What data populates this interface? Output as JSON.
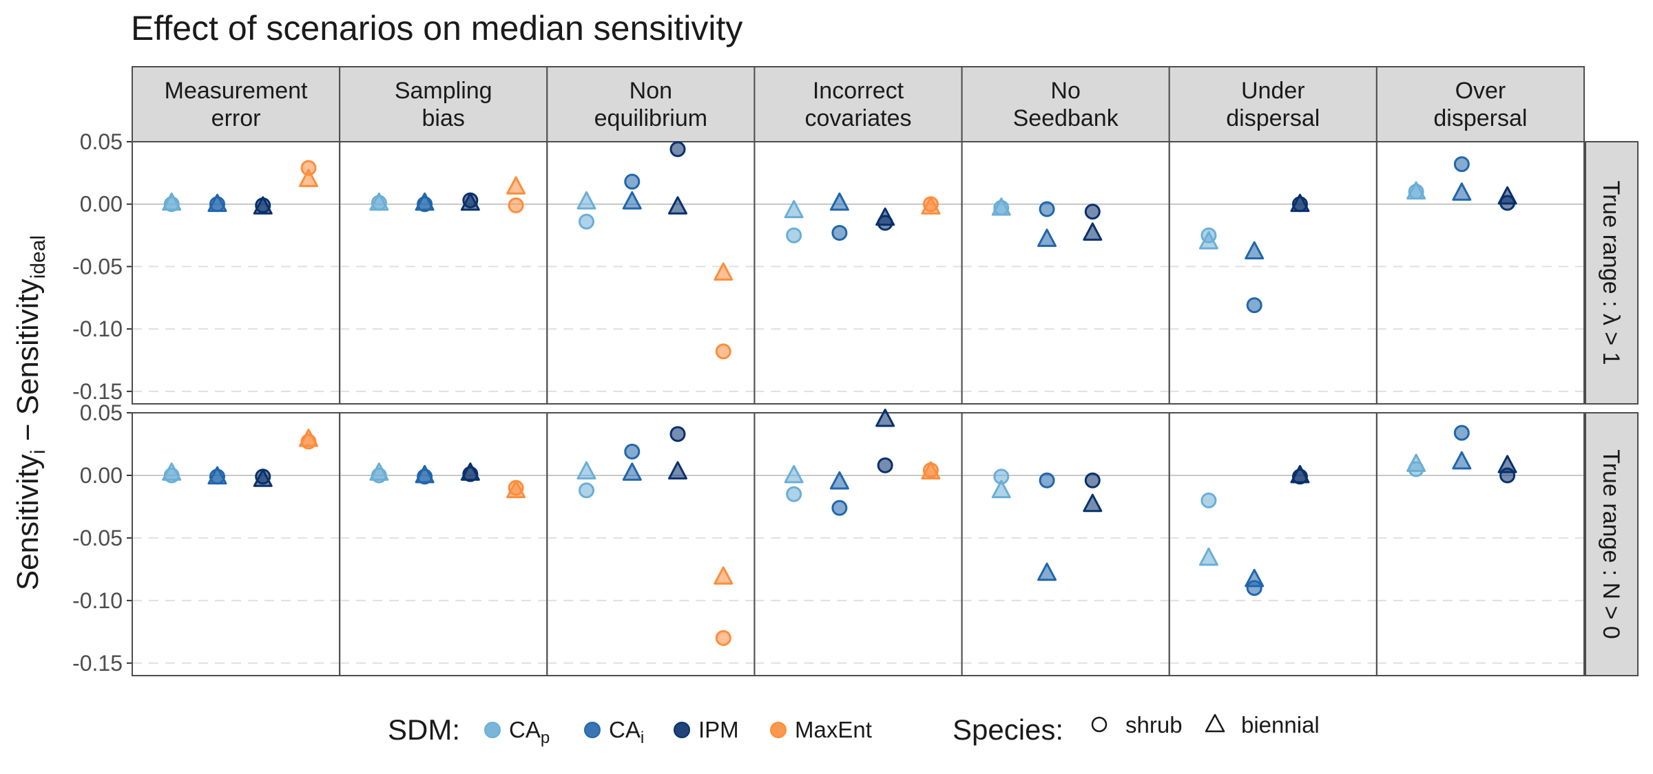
{
  "chart_data": {
    "type": "scatter",
    "title": "Effect of scenarios on median sensitivity",
    "ylabel": {
      "main": "Sensitivity",
      "sub1": "i",
      "mid": " − Sensitivity",
      "sub2": "ideal"
    },
    "ylim": [
      -0.16,
      0.05
    ],
    "y_ticks": [
      0.05,
      0.0,
      -0.05,
      -0.1,
      -0.15
    ],
    "y_tick_labels": [
      "0.05",
      "0.00",
      "-0.05",
      "-0.10",
      "-0.15"
    ],
    "grid": true,
    "facet_columns": [
      [
        "Measurement",
        "error"
      ],
      [
        "Sampling",
        "bias"
      ],
      [
        "Non",
        "equilibrium"
      ],
      [
        "Incorrect",
        "covariates"
      ],
      [
        "No",
        "Seedbank"
      ],
      [
        "Under",
        "dispersal"
      ],
      [
        "Over",
        "dispersal"
      ]
    ],
    "facet_rows": [
      "True range : λ > 1",
      "True range : N > 0"
    ],
    "sdm_levels": [
      "CAp",
      "CAi",
      "IPM",
      "MaxEnt"
    ],
    "sdm_colors": {
      "CAp": "#6baed6",
      "CAi": "#2166ac",
      "IPM": "#08306b",
      "MaxEnt": "#fd8d3c"
    },
    "legend": {
      "position": "bottom",
      "sdm_title": "SDM:",
      "sdm_labels": [
        {
          "main": "CA",
          "sub": "p",
          "color": "#6baed6"
        },
        {
          "main": "CA",
          "sub": "i",
          "color": "#2166ac"
        },
        {
          "main": "IPM",
          "sub": "",
          "color": "#08306b"
        },
        {
          "main": "MaxEnt",
          "sub": "",
          "color": "#fd8d3c"
        }
      ],
      "species_title": "Species:",
      "species_labels": [
        {
          "label": "shrub",
          "shape": "circle"
        },
        {
          "label": "biennial",
          "shape": "triangle"
        }
      ]
    },
    "series": [
      {
        "species": "shrub",
        "shape": "circle",
        "rows": [
          [
            {
              "CAp": 0.0,
              "CAi": 0.0,
              "IPM": -0.001,
              "MaxEnt": 0.029
            },
            {
              "CAp": 0.001,
              "CAi": 0.0,
              "IPM": 0.003,
              "MaxEnt": -0.001
            },
            {
              "CAp": -0.014,
              "CAi": 0.018,
              "IPM": 0.044,
              "MaxEnt": -0.118
            },
            {
              "CAp": -0.025,
              "CAi": -0.023,
              "IPM": -0.015,
              "MaxEnt": 0.0
            },
            {
              "CAp": -0.003,
              "CAi": -0.004,
              "IPM": -0.006,
              "MaxEnt": null
            },
            {
              "CAp": -0.025,
              "CAi": -0.081,
              "IPM": 0.0,
              "MaxEnt": null
            },
            {
              "CAp": 0.01,
              "CAi": 0.032,
              "IPM": 0.001,
              "MaxEnt": null
            }
          ],
          [
            {
              "CAp": 0.0,
              "CAi": -0.001,
              "IPM": -0.001,
              "MaxEnt": 0.027
            },
            {
              "CAp": 0.0,
              "CAi": -0.001,
              "IPM": 0.001,
              "MaxEnt": -0.01
            },
            {
              "CAp": -0.012,
              "CAi": 0.019,
              "IPM": 0.033,
              "MaxEnt": -0.13
            },
            {
              "CAp": -0.015,
              "CAi": -0.026,
              "IPM": 0.008,
              "MaxEnt": 0.004
            },
            {
              "CAp": -0.001,
              "CAi": -0.004,
              "IPM": -0.004,
              "MaxEnt": null
            },
            {
              "CAp": -0.02,
              "CAi": -0.09,
              "IPM": -0.001,
              "MaxEnt": null
            },
            {
              "CAp": 0.005,
              "CAi": 0.034,
              "IPM": 0.0,
              "MaxEnt": null
            }
          ]
        ]
      },
      {
        "species": "biennial",
        "shape": "triangle",
        "rows": [
          [
            {
              "CAp": 0.001,
              "CAi": 0.0,
              "IPM": -0.002,
              "MaxEnt": 0.02
            },
            {
              "CAp": 0.001,
              "CAi": 0.001,
              "IPM": 0.001,
              "MaxEnt": 0.014
            },
            {
              "CAp": 0.002,
              "CAi": 0.002,
              "IPM": -0.002,
              "MaxEnt": -0.055
            },
            {
              "CAp": -0.005,
              "CAi": 0.001,
              "IPM": -0.011,
              "MaxEnt": -0.002
            },
            {
              "CAp": -0.003,
              "CAi": -0.028,
              "IPM": -0.023,
              "MaxEnt": null
            },
            {
              "CAp": -0.03,
              "CAi": -0.038,
              "IPM": 0.0,
              "MaxEnt": null
            },
            {
              "CAp": 0.01,
              "CAi": 0.009,
              "IPM": 0.006,
              "MaxEnt": null
            }
          ],
          [
            {
              "CAp": 0.002,
              "CAi": -0.001,
              "IPM": -0.003,
              "MaxEnt": 0.029
            },
            {
              "CAp": 0.002,
              "CAi": 0.0,
              "IPM": 0.002,
              "MaxEnt": -0.012
            },
            {
              "CAp": 0.003,
              "CAi": 0.002,
              "IPM": 0.003,
              "MaxEnt": -0.081
            },
            {
              "CAp": 0.0,
              "CAi": -0.005,
              "IPM": 0.045,
              "MaxEnt": 0.003
            },
            {
              "CAp": -0.012,
              "CAi": -0.078,
              "IPM": -0.023,
              "MaxEnt": null
            },
            {
              "CAp": -0.066,
              "CAi": -0.083,
              "IPM": 0.0,
              "MaxEnt": null
            },
            {
              "CAp": 0.009,
              "CAi": 0.011,
              "IPM": 0.008,
              "MaxEnt": null
            }
          ]
        ]
      }
    ]
  }
}
